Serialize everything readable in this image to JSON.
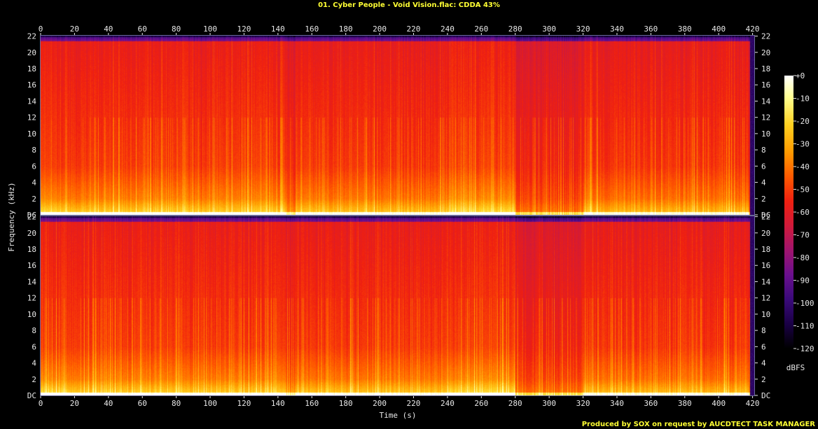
{
  "chart_data": {
    "type": "heatmap",
    "title": "01. Cyber People - Void Vision.flac: CDDA 43%",
    "xlabel": "Time (s)",
    "ylabel": "Frequency (kHz)",
    "x_ticks": [
      "0",
      "20",
      "40",
      "60",
      "80",
      "100",
      "120",
      "140",
      "160",
      "180",
      "200",
      "220",
      "240",
      "260",
      "280",
      "300",
      "320",
      "340",
      "360",
      "380",
      "400",
      "420"
    ],
    "y_ticks": [
      "DC",
      "2",
      "4",
      "6",
      "8",
      "10",
      "12",
      "14",
      "16",
      "18",
      "20",
      "22"
    ],
    "xlim": [
      0,
      421
    ],
    "ylim_khz": [
      0,
      22.05
    ],
    "channels": 2,
    "colorbar": {
      "label": "dBFS",
      "ticks": [
        "+0",
        "-10",
        "-20",
        "-30",
        "-40",
        "-50",
        "-60",
        "-70",
        "-80",
        "-90",
        "-100",
        "-110",
        "-120"
      ],
      "range": [
        -120,
        0
      ],
      "stops": [
        "#000000",
        "#1a0045",
        "#3a0a7a",
        "#6a0f8e",
        "#a0146e",
        "#d01a3a",
        "#f02010",
        "#ff5a00",
        "#ff9a00",
        "#ffd020",
        "#ffff90",
        "#ffffff"
      ]
    },
    "segments": [
      {
        "start": 0,
        "end": 16,
        "loud": 1.0
      },
      {
        "start": 16,
        "end": 145,
        "loud": 0.9
      },
      {
        "start": 145,
        "end": 150,
        "loud": 0.6
      },
      {
        "start": 150,
        "end": 240,
        "loud": 0.85
      },
      {
        "start": 240,
        "end": 280,
        "loud": 1.0
      },
      {
        "start": 280,
        "end": 320,
        "loud": 0.45
      },
      {
        "start": 320,
        "end": 418,
        "loud": 0.8
      },
      {
        "start": 418,
        "end": 421,
        "loud": 0.1
      }
    ],
    "credit": "Produced by SOX on request by AUCDTECT TASK MANAGER"
  }
}
